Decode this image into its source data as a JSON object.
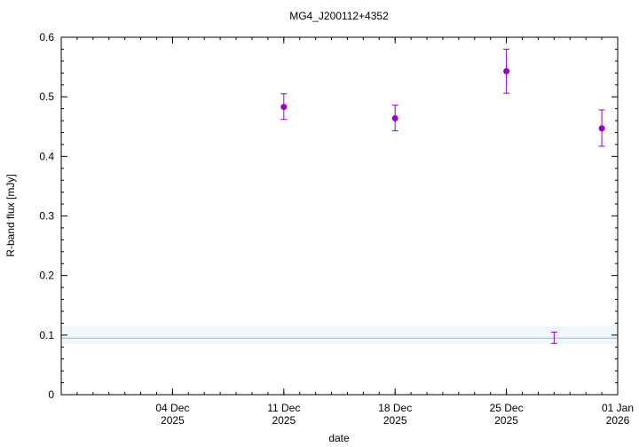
{
  "chart_data": {
    "type": "scatter",
    "title": "MG4_J200112+4352",
    "xlabel": "date",
    "ylabel": "R-band flux [mJy]",
    "xlim": [
      "2025-11-27",
      "2026-01-01"
    ],
    "ylim": [
      0,
      0.6
    ],
    "yticks": [
      "0",
      "0.1",
      "0.2",
      "0.3",
      "0.4",
      "0.5",
      "0.6"
    ],
    "xticks": [
      {
        "date": "2025-12-04",
        "line1": "04 Dec",
        "line2": "2025"
      },
      {
        "date": "2025-12-11",
        "line1": "11 Dec",
        "line2": "2025"
      },
      {
        "date": "2025-12-18",
        "line1": "18 Dec",
        "line2": "2025"
      },
      {
        "date": "2025-12-25",
        "line1": "25 Dec",
        "line2": "2025"
      },
      {
        "date": "2026-01-01",
        "line1": "01 Jan",
        "line2": "2026"
      }
    ],
    "grid": false,
    "series": [
      {
        "marker": "filled-circle",
        "color": "#9400d3",
        "points": [
          {
            "x": "2025-12-11",
            "y": 0.483,
            "ylow": 0.462,
            "yhigh": 0.505
          },
          {
            "x": "2025-12-18",
            "y": 0.464,
            "ylow": 0.443,
            "yhigh": 0.486
          },
          {
            "x": "2025-12-25",
            "y": 0.543,
            "ylow": 0.506,
            "yhigh": 0.58
          },
          {
            "x": "2025-12-31",
            "y": 0.447,
            "ylow": 0.417,
            "yhigh": 0.478
          }
        ]
      },
      {
        "marker": "errorbar-only",
        "color": "#9400d3",
        "points": [
          {
            "x": "2025-12-28",
            "ylow": 0.086,
            "yhigh": 0.105
          }
        ]
      }
    ],
    "reference_line": {
      "y": 0.095,
      "color": "#87bcd6",
      "band_low": 0.085,
      "band_high": 0.115,
      "band_color": "#f0f8fd"
    }
  }
}
